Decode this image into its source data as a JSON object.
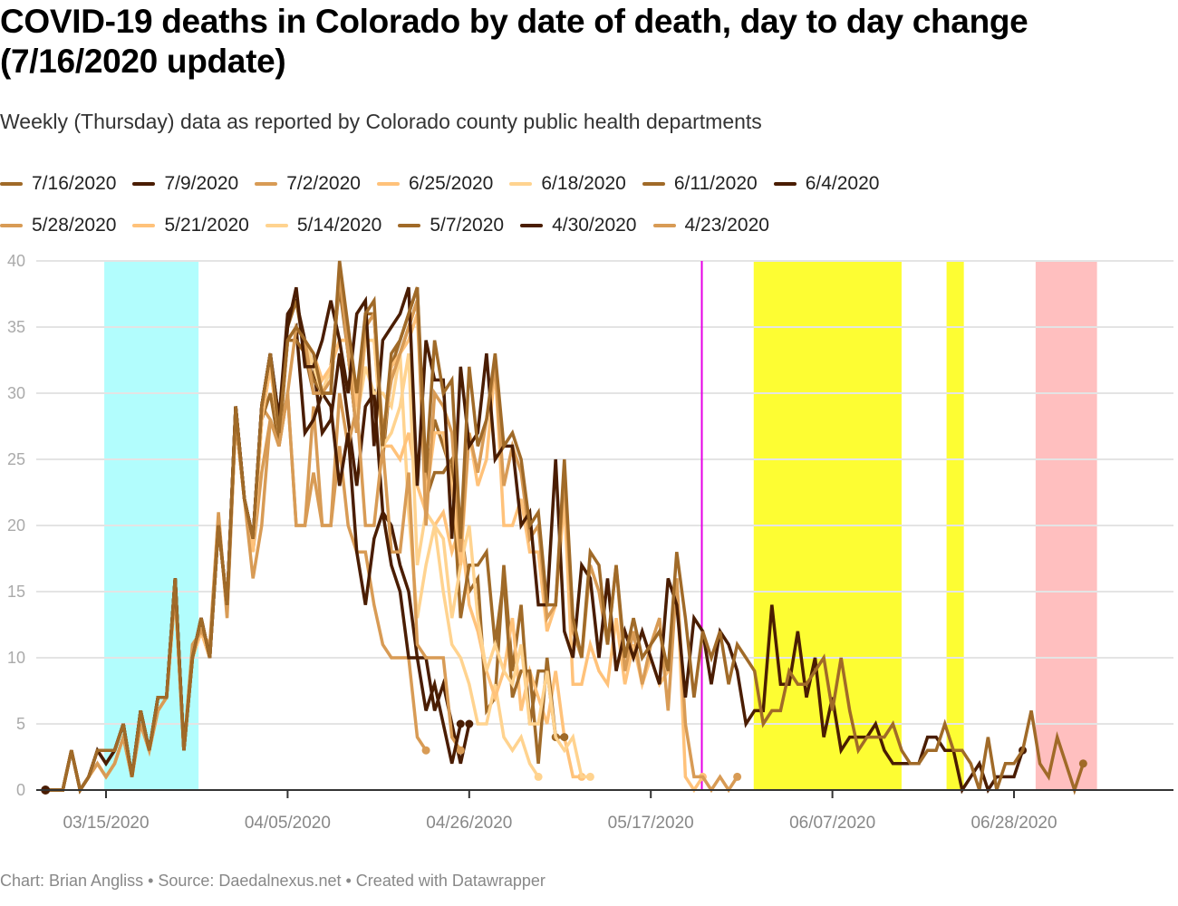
{
  "title": "COVID-19 deaths in Colorado by date of death, day to day change (7/16/2020 update)",
  "subtitle": "Weekly (Thursday) data as reported by Colorado county public health departments",
  "footer": "Chart: Brian Angliss • Source: Daedalnexus.net • Created with Datawrapper",
  "chart_data": {
    "type": "line",
    "title": "COVID-19 deaths in Colorado by date of death, day to day change (7/16/2020 update)",
    "xlabel": "",
    "ylabel": "",
    "x_start": "2020-03-08",
    "ylim": [
      0,
      40
    ],
    "y_ticks": [
      "0",
      "5",
      "10",
      "15",
      "20",
      "25",
      "30",
      "35",
      "40"
    ],
    "x_ticks": [
      {
        "label": "03/15/2020",
        "day": 7
      },
      {
        "label": "04/05/2020",
        "day": 28
      },
      {
        "label": "04/26/2020",
        "day": 49
      },
      {
        "label": "05/17/2020",
        "day": 70
      },
      {
        "label": "06/07/2020",
        "day": 91
      },
      {
        "label": "06/28/2020",
        "day": 112
      }
    ],
    "grid": true,
    "legend_position": "top",
    "bands": [
      {
        "from": 6.8,
        "to": 17.7,
        "color": "#b2fdfd"
      },
      {
        "from": 81.9,
        "to": 99.0,
        "color": "#fdfd33"
      },
      {
        "from": 104.2,
        "to": 106.2,
        "color": "#fdfd33"
      },
      {
        "from": 114.5,
        "to": 121.6,
        "color": "#ffbfbf"
      }
    ],
    "markers": [
      {
        "day": 75.9,
        "color": "#e600e6"
      }
    ],
    "series": [
      {
        "name": "7/16/2020",
        "color": "#a06a28",
        "values": [
          0,
          0,
          0,
          3,
          0,
          1,
          3,
          3,
          3,
          5,
          1,
          6,
          3,
          7,
          7,
          16,
          3,
          10,
          13,
          10,
          20,
          14,
          29,
          22,
          19,
          29,
          33,
          27,
          34,
          35,
          34,
          33,
          30,
          30,
          40,
          35,
          30,
          36,
          37,
          26,
          33,
          34,
          36,
          38,
          24,
          34,
          30,
          31,
          19,
          32,
          26,
          28,
          33,
          26,
          27,
          25,
          20,
          21,
          14,
          14,
          25,
          13,
          10,
          18,
          17,
          11,
          17,
          10,
          13,
          10,
          11,
          12,
          9,
          18,
          13,
          7,
          12,
          10,
          12,
          8,
          11,
          10,
          9,
          5,
          6,
          6,
          9,
          8,
          8,
          9,
          10,
          6,
          10,
          6,
          3,
          4,
          4,
          4,
          5,
          3,
          2,
          2,
          3,
          3,
          5,
          3,
          3,
          2,
          0,
          4,
          0,
          2,
          2,
          3,
          6,
          2,
          1,
          4,
          2,
          0,
          2
        ]
      },
      {
        "name": "7/9/2020",
        "color": "#4a1d02",
        "values": [
          0,
          0,
          0,
          3,
          0,
          1,
          3,
          2,
          3,
          5,
          1,
          6,
          3,
          7,
          7,
          16,
          3,
          10,
          13,
          10,
          20,
          14,
          29,
          22,
          19,
          29,
          33,
          28,
          35,
          38,
          32,
          32,
          34,
          37,
          34,
          30,
          36,
          37,
          26,
          34,
          35,
          36,
          38,
          23,
          34,
          31,
          31,
          19,
          32,
          26,
          27,
          33,
          25,
          26,
          26,
          20,
          21,
          14,
          14,
          25,
          12,
          10,
          17,
          16,
          10,
          16,
          9,
          12,
          10,
          12,
          10,
          8,
          16,
          14,
          7,
          13,
          12,
          8,
          12,
          11,
          9,
          5,
          6,
          6,
          14,
          8,
          8,
          12,
          7,
          10,
          4,
          7,
          3,
          4,
          4,
          4,
          5,
          3,
          2,
          2,
          2,
          2,
          4,
          4,
          3,
          3,
          0,
          1,
          2,
          0,
          1,
          1,
          1,
          3
        ]
      },
      {
        "name": "7/2/2020",
        "color": "#d89b55",
        "values": [
          0,
          0,
          0,
          3,
          0,
          1,
          2,
          1,
          2,
          4,
          1,
          5,
          3,
          6,
          7,
          15,
          3,
          11,
          12,
          11,
          21,
          13,
          28,
          22,
          16,
          20,
          28,
          26,
          30,
          35,
          34,
          30,
          30,
          31,
          39,
          33,
          27,
          35,
          36,
          27,
          31,
          33,
          35,
          37,
          20,
          30,
          29,
          27,
          18,
          27,
          24,
          28,
          32,
          23,
          26,
          24,
          19,
          20,
          13,
          14,
          24,
          12,
          10,
          17,
          15,
          11,
          17,
          9,
          12,
          8,
          11,
          13,
          6,
          16,
          5,
          1,
          1,
          0,
          1,
          0,
          1
        ]
      },
      {
        "name": "6/25/2020",
        "color": "#ffc27a",
        "values": [
          0,
          0,
          0,
          3,
          0,
          1,
          2,
          1,
          2,
          4,
          1,
          5,
          3,
          6,
          7,
          15,
          3,
          10,
          12,
          10,
          20,
          14,
          28,
          22,
          18,
          28,
          32,
          27,
          34,
          35,
          34,
          33,
          31,
          32,
          34,
          34,
          29,
          35,
          36,
          26,
          32,
          33,
          34,
          36,
          22,
          27,
          27,
          23,
          17,
          27,
          23,
          25,
          32,
          20,
          20,
          22,
          18,
          18,
          12,
          14,
          22,
          8,
          8,
          11,
          9,
          8,
          13,
          8,
          11,
          8,
          10,
          8,
          9,
          16,
          1,
          0,
          1
        ]
      },
      {
        "name": "6/18/2020",
        "color": "#ffd38f",
        "values": [
          0,
          0,
          0,
          3,
          0,
          1,
          2,
          1,
          2,
          4,
          1,
          5,
          3,
          6,
          7,
          15,
          3,
          10,
          12,
          10,
          20,
          14,
          28,
          22,
          18,
          28,
          32,
          27,
          34,
          35,
          34,
          32,
          30,
          32,
          34,
          34,
          28,
          34,
          34,
          26,
          27,
          29,
          33,
          17,
          21,
          20,
          19,
          13,
          17,
          20,
          13,
          9,
          11,
          9,
          8,
          11,
          5,
          5,
          9,
          4,
          3,
          4,
          1,
          1
        ]
      },
      {
        "name": "6/11/2020",
        "color": "#a06a28",
        "values": [
          0,
          0,
          0,
          3,
          0,
          1,
          3,
          3,
          3,
          5,
          1,
          6,
          3,
          7,
          7,
          16,
          3,
          10,
          13,
          10,
          20,
          14,
          28,
          22,
          19,
          28,
          30,
          26,
          34,
          34,
          33,
          31,
          30,
          30,
          39,
          33,
          27,
          36,
          36,
          26,
          32,
          33,
          35,
          37,
          23,
          28,
          26,
          24,
          13,
          17,
          17,
          18,
          11,
          16,
          7,
          9,
          9,
          2,
          10,
          4,
          4
        ]
      },
      {
        "name": "6/4/2020",
        "color": "#4a1d02",
        "values": [
          0,
          0,
          0,
          3,
          0,
          1,
          3,
          2,
          3,
          5,
          1,
          6,
          3,
          7,
          7,
          16,
          3,
          10,
          13,
          10,
          20,
          14,
          29,
          22,
          19,
          29,
          33,
          27,
          34,
          35,
          27,
          28,
          30,
          29,
          23,
          27,
          18,
          14,
          19,
          21,
          17,
          15,
          10,
          10,
          6,
          8,
          5,
          2,
          5
        ]
      },
      {
        "name": "5/28/2020",
        "color": "#d89b55",
        "values": [
          0,
          0,
          0,
          3,
          0,
          1,
          2,
          1,
          2,
          4,
          1,
          5,
          3,
          6,
          7,
          15,
          3,
          10,
          12,
          10,
          20,
          14,
          28,
          22,
          18,
          29,
          28,
          26,
          30,
          20,
          20,
          24,
          20,
          20,
          30,
          26,
          29,
          20,
          20,
          26,
          18,
          18,
          24,
          11,
          10,
          10,
          10,
          4,
          3
        ]
      },
      {
        "name": "5/21/2020",
        "color": "#ffc27a",
        "values": [
          0,
          0,
          0,
          3,
          0,
          1,
          2,
          1,
          2,
          4,
          1,
          5,
          3,
          6,
          7,
          15,
          3,
          10,
          12,
          10,
          20,
          14,
          28,
          22,
          18,
          28,
          32,
          27,
          34,
          35,
          34,
          32,
          30,
          32,
          34,
          34,
          28,
          34,
          34,
          26,
          26,
          25,
          27,
          23,
          21,
          20,
          21,
          18,
          20,
          14,
          12,
          9,
          7,
          9,
          13,
          6,
          9,
          7,
          5,
          9,
          4,
          1,
          1
        ]
      },
      {
        "name": "5/14/2020",
        "color": "#ffd38f",
        "values": [
          0,
          0,
          0,
          3,
          0,
          1,
          2,
          1,
          2,
          4,
          1,
          5,
          3,
          6,
          7,
          15,
          3,
          10,
          12,
          10,
          20,
          14,
          28,
          22,
          18,
          28,
          32,
          27,
          34,
          35,
          34,
          32,
          30,
          32,
          34,
          34,
          28,
          32,
          30,
          30,
          29,
          33,
          21,
          13,
          17,
          20,
          15,
          11,
          10,
          8,
          5,
          5,
          8,
          4,
          3,
          4,
          2,
          1
        ]
      },
      {
        "name": "5/7/2020",
        "color": "#a06a28",
        "values": [
          0,
          0,
          0,
          3,
          0,
          1,
          3,
          3,
          3,
          5,
          1,
          6,
          3,
          7,
          7,
          16,
          3,
          10,
          13,
          10,
          20,
          14,
          29,
          22,
          19,
          29,
          33,
          27,
          35,
          37,
          33,
          30,
          30,
          32,
          38,
          33,
          27,
          35,
          36,
          25,
          32,
          34,
          36,
          38,
          22,
          24,
          24,
          25,
          20,
          15,
          16,
          6,
          7,
          17,
          9,
          14,
          5,
          9,
          9,
          4
        ]
      },
      {
        "name": "4/30/2020",
        "color": "#4a1d02",
        "values": [
          0,
          0,
          0,
          3,
          0,
          1,
          3,
          3,
          3,
          5,
          1,
          6,
          3,
          7,
          7,
          16,
          3,
          10,
          13,
          10,
          20,
          14,
          29,
          22,
          19,
          29,
          33,
          28,
          36,
          37,
          34,
          32,
          27,
          28,
          33,
          28,
          23,
          29,
          30,
          21,
          20,
          17,
          15,
          10,
          10,
          6,
          8,
          5,
          2,
          5
        ]
      },
      {
        "name": "4/23/2020",
        "color": "#d89b55",
        "values": [
          0,
          0,
          0,
          3,
          0,
          1,
          2,
          1,
          2,
          4,
          1,
          5,
          3,
          6,
          7,
          15,
          3,
          10,
          12,
          10,
          20,
          14,
          28,
          22,
          18,
          24,
          28,
          26,
          30,
          20,
          20,
          29,
          20,
          20,
          26,
          20,
          18,
          18,
          14,
          11,
          10,
          10,
          10,
          4,
          3
        ]
      }
    ]
  },
  "legend": {
    "rows": [
      [
        0,
        1,
        2,
        3,
        4,
        5,
        6
      ],
      [
        7,
        8,
        9,
        10,
        11,
        12
      ]
    ]
  }
}
